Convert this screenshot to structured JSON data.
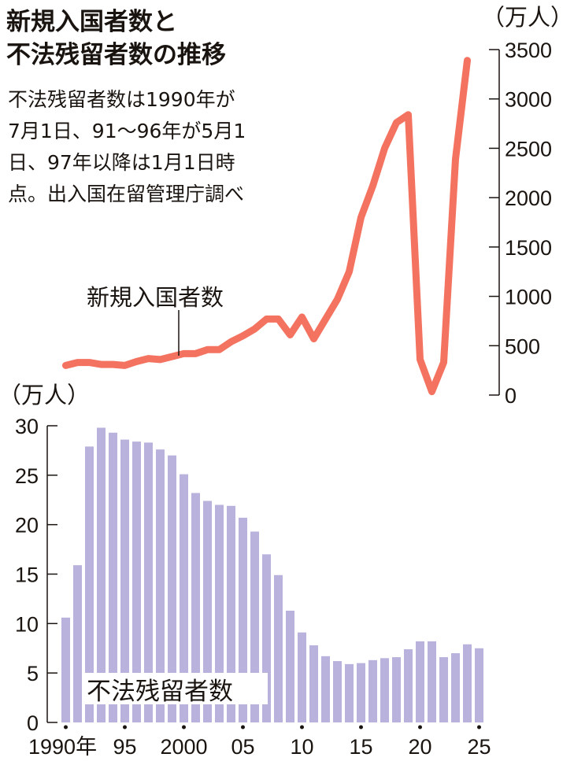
{
  "title_lines": [
    "新規入国者数と",
    "不法残留者数の推移"
  ],
  "note_lines": [
    "不法残留者数は1990年が",
    "7月1日、91～96年が5月1",
    "日、97年以降は1月1日時",
    "点。出入国在留管理庁調べ"
  ],
  "chart_data": [
    {
      "type": "line",
      "name": "新規入国者数",
      "label": "新規入国者数",
      "unit_label": "（万人）",
      "axis": "right",
      "ylim": [
        0,
        3500
      ],
      "yticks": [
        "0",
        "500",
        "1000",
        "1500",
        "2000",
        "2500",
        "3000",
        "3500"
      ],
      "x": [
        1990,
        1991,
        1992,
        1993,
        1994,
        1995,
        1996,
        1997,
        1998,
        1999,
        2000,
        2001,
        2002,
        2003,
        2004,
        2005,
        2006,
        2007,
        2008,
        2009,
        2010,
        2011,
        2012,
        2013,
        2014,
        2015,
        2016,
        2017,
        2018,
        2019,
        2020,
        2021,
        2022,
        2023,
        2024
      ],
      "values": [
        300,
        330,
        330,
        310,
        310,
        300,
        340,
        370,
        360,
        390,
        420,
        420,
        460,
        460,
        540,
        600,
        670,
        770,
        770,
        610,
        790,
        570,
        770,
        970,
        1250,
        1800,
        2120,
        2500,
        2760,
        2840,
        360,
        35,
        330,
        2390,
        3390
      ],
      "color": "#f47360"
    },
    {
      "type": "bar",
      "name": "不法残留者数",
      "label": "不法残留者数",
      "unit_label": "（万人）",
      "axis": "left",
      "ylim": [
        0,
        30
      ],
      "yticks": [
        "0",
        "5",
        "10",
        "15",
        "20",
        "25",
        "30"
      ],
      "x": [
        1990,
        1991,
        1992,
        1993,
        1994,
        1995,
        1996,
        1997,
        1998,
        1999,
        2000,
        2001,
        2002,
        2003,
        2004,
        2005,
        2006,
        2007,
        2008,
        2009,
        2010,
        2011,
        2012,
        2013,
        2014,
        2015,
        2016,
        2017,
        2018,
        2019,
        2020,
        2021,
        2022,
        2023,
        2024,
        2025
      ],
      "values": [
        10.6,
        15.9,
        27.9,
        29.8,
        29.3,
        28.6,
        28.4,
        28.3,
        27.6,
        27.0,
        25.1,
        23.2,
        22.4,
        22.0,
        21.9,
        20.7,
        19.3,
        17.0,
        14.9,
        11.3,
        9.1,
        7.8,
        6.7,
        6.2,
        5.9,
        6.0,
        6.3,
        6.5,
        6.6,
        7.4,
        8.2,
        8.2,
        6.6,
        7.0,
        7.9,
        7.5
      ],
      "color": "#b8b2dc"
    }
  ],
  "xticks": [
    {
      "year": 1990,
      "label": "1990年"
    },
    {
      "year": 1995,
      "label": "95"
    },
    {
      "year": 2000,
      "label": "2000"
    },
    {
      "year": 2005,
      "label": "05"
    },
    {
      "year": 2010,
      "label": "10"
    },
    {
      "year": 2015,
      "label": "15"
    },
    {
      "year": 2020,
      "label": "20"
    },
    {
      "year": 2025,
      "label": "25"
    }
  ]
}
